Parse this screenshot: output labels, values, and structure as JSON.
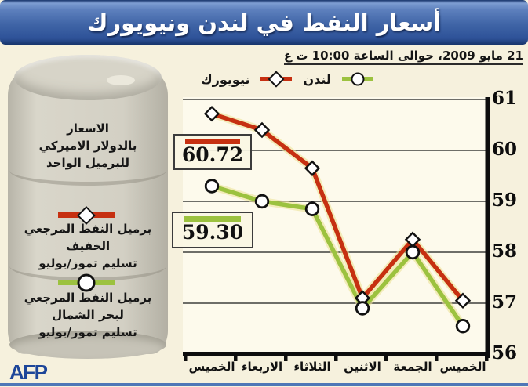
{
  "banner": {
    "title": "أسعار النفط في لندن ونيويورك"
  },
  "header": {
    "date_line": "21 مايو 2009، حوالى الساعة 10:00 ت غ"
  },
  "legend": {
    "london": {
      "label": "لندن",
      "marker": "circle",
      "color": "#9cc23f"
    },
    "newyork": {
      "label": "نيويورك",
      "marker": "diamond",
      "color": "#c63011"
    }
  },
  "callouts": {
    "newyork": {
      "value": "60.72",
      "color": "#c63011"
    },
    "london": {
      "value": "59.30",
      "color": "#9cc23f"
    }
  },
  "sidebar": {
    "unit_lines": [
      "الاسعار",
      "بالدولار الاميركي",
      "للبرميل الواحد"
    ],
    "key_newyork": {
      "lines": [
        "برميل النفط المرجعي الخفيف",
        "تسليم تموز/يوليو"
      ]
    },
    "key_london": {
      "lines": [
        "برميل النفط المرجعي",
        "لبحر الشمال",
        "تسليم تموز/يوليو"
      ]
    },
    "credit": "AFP"
  },
  "chart_data": {
    "type": "line",
    "title": "أسعار النفط في لندن ونيويورك",
    "subtitle": "21 مايو 2009، حوالى الساعة 10:00 ت غ",
    "categories": [
      "الخميس",
      "الاربعاء",
      "الثلاثاء",
      "الاثنين",
      "الجمعة",
      "الخميس"
    ],
    "series": [
      {
        "name": "نيويورك",
        "color": "#c63011",
        "marker": "diamond",
        "values": [
          60.72,
          60.4,
          59.65,
          57.1,
          58.25,
          57.05
        ],
        "latest_label": "60.72"
      },
      {
        "name": "لندن",
        "color": "#9cc23f",
        "marker": "circle",
        "values": [
          59.3,
          59.0,
          58.85,
          56.9,
          58.0,
          56.55
        ],
        "latest_label": "59.30"
      }
    ],
    "ylim": [
      56,
      61
    ],
    "yticks": [
      61,
      60,
      59,
      58,
      57,
      56
    ],
    "y_axis_side": "right",
    "grid": true,
    "legend_position": "top"
  }
}
